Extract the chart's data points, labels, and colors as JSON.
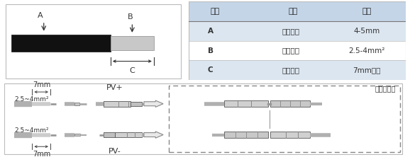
{
  "bg_color": "#ffffff",
  "table_header_bg": "#c5d5e8",
  "table_row_bg1": "#dce6f0",
  "table_row_bg2": "#ffffff",
  "text_color": "#333333",
  "table_header": [
    "名称",
    "说明",
    "数值"
  ],
  "table_rows": [
    [
      "A",
      "导线外径",
      "4-5mm"
    ],
    [
      "B",
      "导线内径",
      "2.5-4mm²"
    ],
    [
      "C",
      "剥线长度",
      "7mm左右"
    ]
  ],
  "label_A": "A",
  "label_B": "B",
  "label_C": "C",
  "dim_7mm": "7mm",
  "label_pv_plus": "PV+",
  "label_pv_minus": "PV-",
  "label_inverter": "逆变器内部",
  "label_wire_size": "2.5~4mm²"
}
